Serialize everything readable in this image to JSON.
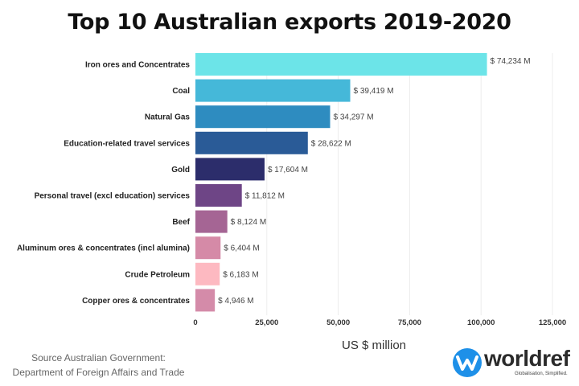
{
  "chart_data": {
    "type": "bar",
    "orientation": "horizontal",
    "title": "Top 10 Australian exports 2019-2020",
    "xlabel": "US $ million",
    "ylabel": "",
    "xlim": [
      0,
      125000
    ],
    "xticks": [
      "0",
      "25,000",
      "50,000",
      "75,000",
      "100,000",
      "125,000"
    ],
    "grid": true,
    "categories": [
      "Iron ores and Concentrates",
      "Coal",
      "Natural Gas",
      "Education-related travel services",
      "Gold",
      "Personal travel (excl education) services",
      "Beef",
      "Aluminum ores & concentrates (incl alumina)",
      "Crude Petroleum",
      "Copper ores & concentrates"
    ],
    "values": [
      74234,
      39419,
      34297,
      28622,
      17604,
      11812,
      8124,
      6404,
      6183,
      4946
    ],
    "data_labels": [
      "$ 74,234 M",
      "$ 39,419 M",
      "$ 34,297 M",
      "$ 28,622 M",
      "$ 17,604 M",
      "$ 11,812 M",
      "$ 8,124 M",
      "$ 6,404 M",
      "$ 6,183 M",
      "$ 4,946 M"
    ],
    "colors": [
      "#6ce4e8",
      "#45b8d9",
      "#2e8cc0",
      "#2a5b97",
      "#2c2d6b",
      "#6e4586",
      "#a56594",
      "#d58aa7",
      "#fdb9c1",
      "#d48ba9"
    ]
  },
  "source": {
    "line1": "Source Australian Government:",
    "line2": "Department of Foreign Affairs and Trade"
  },
  "logo": {
    "name": "worldref",
    "tagline": "Globalisation, Simplified.",
    "color": "#1e90e8"
  }
}
